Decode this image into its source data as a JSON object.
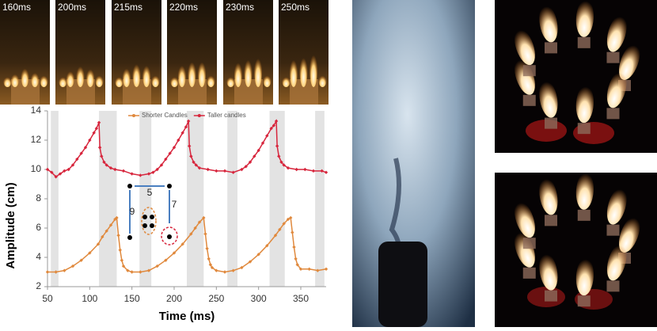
{
  "photos": {
    "labels": [
      "160ms",
      "200ms",
      "215ms",
      "220ms",
      "230ms",
      "250ms"
    ]
  },
  "chart_data": {
    "type": "line",
    "x_label": "Time (ms)",
    "y_label": "Amplitude (cm)",
    "xlim": [
      50,
      380
    ],
    "xticks": [
      50,
      100,
      150,
      200,
      250,
      300,
      350
    ],
    "ylim": [
      2,
      14
    ],
    "yticks": [
      2,
      4,
      6,
      8,
      10,
      12,
      14
    ],
    "grid": false,
    "legend_position": "top",
    "bands": [
      [
        54,
        63
      ],
      [
        111,
        132
      ],
      [
        159,
        173
      ],
      [
        215,
        235
      ],
      [
        263,
        275
      ],
      [
        313,
        331
      ],
      [
        367,
        378
      ]
    ],
    "band_color": "#e3e3e3",
    "annotations": [
      "5",
      "7",
      "9"
    ],
    "series": [
      {
        "name": "Shorter Candles",
        "color": "#e0893d",
        "x": [
          50,
          60,
          70,
          80,
          90,
          100,
          110,
          115,
          120,
          125,
          130,
          132,
          134,
          136,
          138,
          140,
          145,
          150,
          160,
          170,
          180,
          190,
          200,
          210,
          220,
          225,
          230,
          235,
          237,
          239,
          241,
          243,
          245,
          250,
          260,
          270,
          280,
          290,
          300,
          310,
          320,
          325,
          330,
          335,
          338,
          340,
          342,
          344,
          346,
          350,
          360,
          370,
          380
        ],
        "values": [
          3.0,
          3.0,
          3.1,
          3.4,
          3.8,
          4.3,
          4.9,
          5.4,
          5.8,
          6.2,
          6.6,
          6.7,
          5.5,
          4.5,
          3.8,
          3.4,
          3.1,
          3.0,
          3.0,
          3.1,
          3.4,
          3.8,
          4.3,
          4.9,
          5.6,
          6.0,
          6.4,
          6.7,
          5.6,
          4.6,
          3.9,
          3.5,
          3.3,
          3.1,
          3.0,
          3.1,
          3.3,
          3.7,
          4.2,
          4.8,
          5.5,
          5.9,
          6.3,
          6.6,
          6.7,
          5.7,
          4.7,
          3.9,
          3.5,
          3.2,
          3.2,
          3.1,
          3.2
        ]
      },
      {
        "name": "Taller candles",
        "color": "#d7263d",
        "x": [
          50,
          55,
          60,
          65,
          70,
          75,
          80,
          85,
          90,
          95,
          100,
          105,
          108,
          111,
          112,
          114,
          117,
          120,
          125,
          130,
          140,
          150,
          160,
          170,
          175,
          180,
          185,
          190,
          195,
          200,
          205,
          210,
          214,
          217,
          218,
          220,
          223,
          226,
          230,
          240,
          250,
          260,
          270,
          280,
          285,
          290,
          295,
          300,
          305,
          310,
          315,
          318,
          321,
          322,
          324,
          327,
          330,
          335,
          345,
          355,
          365,
          375,
          380
        ],
        "values": [
          10.0,
          9.8,
          9.5,
          9.7,
          9.9,
          10.0,
          10.3,
          10.7,
          11.1,
          11.5,
          12.0,
          12.5,
          12.8,
          13.2,
          11.5,
          10.9,
          10.5,
          10.3,
          10.1,
          10.0,
          9.9,
          9.7,
          9.6,
          9.7,
          9.8,
          10.0,
          10.3,
          10.7,
          11.1,
          11.5,
          12.0,
          12.5,
          12.9,
          13.3,
          11.6,
          10.9,
          10.5,
          10.3,
          10.1,
          10.0,
          9.9,
          9.9,
          9.8,
          10.0,
          10.2,
          10.5,
          10.9,
          11.3,
          11.8,
          12.3,
          12.8,
          13.0,
          13.3,
          11.6,
          10.9,
          10.5,
          10.3,
          10.1,
          10.0,
          10.0,
          9.9,
          9.9,
          9.8
        ]
      }
    ]
  }
}
